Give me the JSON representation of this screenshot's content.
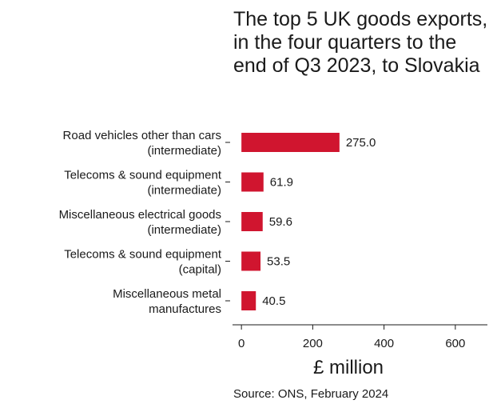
{
  "chart_data": {
    "type": "bar",
    "orientation": "horizontal",
    "title": "The top 5 UK goods exports, in the four quarters to the end of Q3 2023, to Slovakia",
    "categories": [
      [
        "Road vehicles other than cars",
        "(intermediate)"
      ],
      [
        "Telecoms & sound equipment",
        "(intermediate)"
      ],
      [
        "Miscellaneous electrical goods",
        "(intermediate)"
      ],
      [
        "Telecoms & sound equipment",
        "(capital)"
      ],
      [
        "Miscellaneous metal",
        "manufactures"
      ]
    ],
    "values": [
      275.0,
      61.9,
      59.6,
      53.5,
      40.5
    ],
    "value_labels": [
      "275.0",
      "61.9",
      "59.6",
      "53.5",
      "40.5"
    ],
    "xlabel": "£ million",
    "xticks": [
      0,
      200,
      400,
      600
    ],
    "xlim": [
      -25,
      690
    ],
    "bar_color": "#d0152f",
    "grid": false,
    "source": "Source: ONS, February 2024"
  }
}
